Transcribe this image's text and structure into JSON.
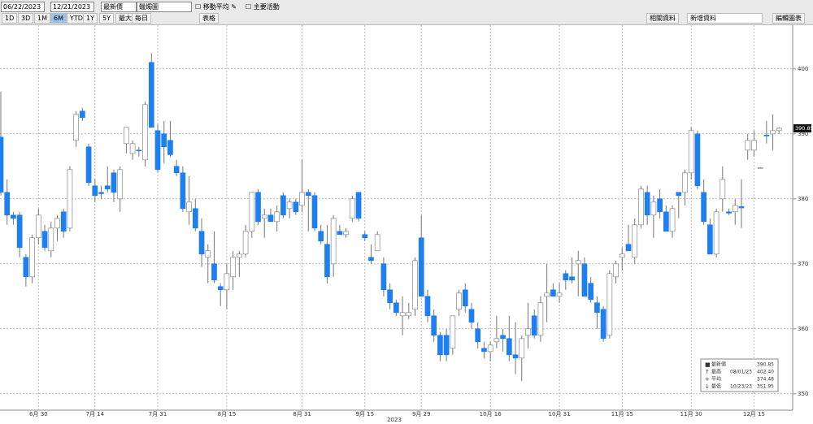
{
  "toolbar": {
    "start_date": "06/22/2023",
    "end_date": "12/21/2023",
    "field": "最新價",
    "style": "蠟燭圖",
    "checkboxes": [
      "移動平均",
      "主要活動"
    ],
    "ranges": [
      "1D",
      "3D",
      "1M",
      "6M",
      "YTD",
      "1Y",
      "5Y",
      "最大"
    ],
    "period": "每日",
    "table": "表格",
    "tabs": [
      "相關資料",
      "新增資料",
      "編輯圖表"
    ]
  },
  "chart_data": {
    "type": "candlestick",
    "year_label": "2023",
    "up_color": "#ffffff",
    "down_color": "#1e7ff0",
    "ylim": [
      348.1,
      406.1
    ],
    "yticks": [
      350,
      360,
      370,
      380,
      390,
      400
    ],
    "grid": true,
    "categories": [
      null,
      null,
      null,
      null,
      null,
      null,
      "6月 30",
      null,
      null,
      null,
      null,
      null,
      null,
      null,
      null,
      "7月 14",
      null,
      null,
      null,
      null,
      null,
      null,
      null,
      null,
      null,
      "7月 31",
      null,
      null,
      null,
      null,
      null,
      null,
      null,
      null,
      null,
      null,
      "8月 15",
      null,
      null,
      null,
      null,
      null,
      null,
      null,
      null,
      null,
      null,
      null,
      "8月 31",
      null,
      null,
      null,
      null,
      null,
      null,
      null,
      null,
      null,
      "9月 15",
      null,
      null,
      null,
      null,
      null,
      null,
      null,
      null,
      "9月 29",
      null,
      null,
      null,
      null,
      null,
      null,
      null,
      null,
      null,
      null,
      "10月 16",
      null,
      null,
      null,
      null,
      null,
      null,
      null,
      null,
      null,
      null,
      "10月 31",
      null,
      null,
      null,
      null,
      null,
      null,
      null,
      null,
      null,
      "11月 15",
      null,
      null,
      null,
      null,
      null,
      null,
      null,
      null,
      null,
      null,
      "11月 30",
      null,
      null,
      null,
      null,
      null,
      null,
      null,
      null,
      null,
      "12月 15",
      null,
      null,
      null,
      null
    ],
    "candles": [
      [
        389.5,
        396.5,
        380.5,
        381
      ],
      [
        381,
        383,
        376,
        377.5
      ],
      [
        377.5,
        378,
        376,
        377
      ],
      [
        377.5,
        378,
        371,
        372.5
      ],
      [
        371,
        371.5,
        366.5,
        368
      ],
      [
        368,
        374.5,
        367,
        374
      ],
      [
        374,
        378.5,
        373,
        377.5
      ],
      [
        375,
        376,
        372,
        372.5
      ],
      [
        372,
        376.5,
        371,
        375.5
      ],
      [
        375.5,
        377.5,
        373.5,
        377
      ],
      [
        378,
        378.5,
        374,
        375
      ],
      [
        375.5,
        385,
        375,
        384.5
      ],
      [
        389,
        393.5,
        388,
        393
      ],
      [
        393.5,
        394,
        392,
        392.5
      ],
      [
        388,
        388.5,
        382,
        382.5
      ],
      [
        382,
        383,
        379.5,
        380.5
      ],
      [
        381,
        382,
        380,
        380.8
      ],
      [
        382,
        385,
        381,
        381.5
      ],
      [
        384,
        384.5,
        379.5,
        381
      ],
      [
        380,
        385,
        378,
        384.5
      ],
      [
        388.5,
        391,
        387,
        391
      ],
      [
        387,
        389,
        386,
        388.5
      ],
      [
        387.5,
        388,
        386.5,
        387.4
      ],
      [
        386,
        395,
        385,
        394.5
      ],
      [
        401,
        402.4,
        391,
        391
      ],
      [
        390.5,
        391.5,
        384,
        384.5
      ],
      [
        390,
        392,
        385.5,
        388
      ],
      [
        389,
        392,
        386.5,
        386.8
      ],
      [
        385,
        386,
        383.5,
        384
      ],
      [
        384,
        385,
        378,
        378.5
      ],
      [
        378,
        383.5,
        376,
        379.5
      ],
      [
        378.5,
        380,
        375,
        375.5
      ],
      [
        375,
        377,
        369.5,
        371.5
      ],
      [
        371,
        373,
        367,
        372
      ],
      [
        370,
        375,
        367,
        367.5
      ],
      [
        366.5,
        367,
        363.5,
        366
      ],
      [
        366,
        370,
        363,
        368.5
      ],
      [
        368,
        372,
        366,
        371
      ],
      [
        371,
        372,
        368,
        371.5
      ],
      [
        371.5,
        376,
        371,
        375
      ],
      [
        375,
        381,
        374,
        381
      ],
      [
        381,
        381.5,
        376,
        376.5
      ],
      [
        377,
        378.5,
        374,
        377.5
      ],
      [
        377.5,
        378.5,
        376.5,
        376.5
      ],
      [
        376.5,
        379,
        375,
        378
      ],
      [
        380.5,
        381,
        377,
        377.5
      ],
      [
        378.5,
        380,
        377,
        379.5
      ],
      [
        379.5,
        380,
        377.5,
        378
      ],
      [
        379,
        386,
        378,
        381
      ],
      [
        381,
        381.5,
        375,
        380.5
      ],
      [
        380.5,
        381,
        375,
        375.5
      ],
      [
        375,
        376,
        373,
        373.5
      ],
      [
        373,
        376,
        367,
        368
      ],
      [
        370,
        377.5,
        368,
        377
      ],
      [
        375,
        376,
        374.5,
        374.5
      ],
      [
        374.5,
        375.5,
        374,
        375
      ],
      [
        377,
        380.5,
        376.5,
        380
      ],
      [
        381,
        381,
        376.5,
        377
      ],
      [
        374.5,
        375,
        373.5,
        374
      ],
      [
        371,
        373,
        370,
        370.5
      ],
      [
        372,
        375,
        372,
        374.5
      ],
      [
        370,
        371,
        365,
        366
      ],
      [
        366,
        367,
        363,
        364
      ],
      [
        364,
        364.5,
        362,
        362.5
      ],
      [
        362,
        365,
        359,
        362.5
      ],
      [
        362,
        364,
        361.5,
        362.5
      ],
      [
        363,
        371,
        362,
        370.5
      ],
      [
        374,
        377.5,
        365,
        365
      ],
      [
        365,
        366,
        361,
        362
      ],
      [
        362,
        363,
        358,
        359
      ],
      [
        359,
        359.5,
        355,
        356
      ],
      [
        359,
        360,
        355,
        356
      ],
      [
        357,
        362,
        356,
        362
      ],
      [
        363,
        366,
        362,
        365.5
      ],
      [
        366,
        367,
        362.5,
        363.5
      ],
      [
        363,
        364,
        360,
        361
      ],
      [
        360,
        361,
        357,
        358
      ],
      [
        357,
        358,
        355.5,
        356.5
      ],
      [
        356.5,
        358,
        355,
        357.5
      ],
      [
        358,
        362,
        357,
        358.5
      ],
      [
        359,
        360,
        356.5,
        358.5
      ],
      [
        358.5,
        362,
        355,
        356
      ],
      [
        356,
        361,
        353,
        355.5
      ],
      [
        355.5,
        359,
        351.95,
        358.5
      ],
      [
        359,
        364,
        357,
        360
      ],
      [
        362,
        363,
        358.5,
        359
      ],
      [
        359,
        365,
        358,
        364
      ],
      [
        365,
        370,
        361,
        365.5
      ],
      [
        366,
        367,
        365,
        365
      ],
      [
        365,
        367,
        364,
        365.5
      ],
      [
        368.5,
        369,
        366,
        367.5
      ],
      [
        368,
        371,
        367,
        367.5
      ],
      [
        370,
        372,
        365,
        370.5
      ],
      [
        370,
        371,
        365,
        365
      ],
      [
        367,
        368,
        364,
        364.5
      ],
      [
        364,
        365,
        360,
        362.5
      ],
      [
        363,
        363.5,
        358,
        358.5
      ],
      [
        359,
        369,
        358.5,
        368.5
      ],
      [
        368,
        370.5,
        367,
        370
      ],
      [
        371,
        372.5,
        369,
        371.5
      ],
      [
        373,
        376,
        372,
        372
      ],
      [
        371,
        377,
        370,
        376
      ],
      [
        376,
        382,
        375.5,
        381.5
      ],
      [
        381,
        382,
        376,
        377.5
      ],
      [
        377.5,
        380.5,
        374,
        379.5
      ],
      [
        380,
        381.5,
        377,
        378
      ],
      [
        378,
        379,
        375,
        375
      ],
      [
        375,
        379,
        374,
        378.5
      ],
      [
        381,
        381,
        377,
        380.5
      ],
      [
        381,
        384.5,
        379,
        384
      ],
      [
        384,
        391,
        383,
        390.5
      ],
      [
        390,
        390.5,
        381.5,
        382
      ],
      [
        381,
        383,
        376,
        376.5
      ],
      [
        376,
        377,
        371.5,
        371.5
      ],
      [
        371.5,
        378.5,
        371,
        378
      ],
      [
        380,
        385,
        378,
        383
      ],
      [
        378,
        378.5,
        377.5,
        377.8
      ],
      [
        378,
        380,
        376,
        379
      ],
      [
        378.8,
        383,
        375.5,
        378.6
      ],
      [
        387.5,
        390,
        386,
        389
      ],
      [
        387.5,
        390.5,
        386.5,
        389
      ],
      [
        384.8,
        384.9,
        384.7,
        384.8
      ],
      [
        389.8,
        392,
        388.5,
        389.7
      ],
      [
        390,
        393,
        387.5,
        390.5
      ],
      [
        390.5,
        391,
        390,
        390.85
      ]
    ],
    "legend": [
      {
        "label": "最新價",
        "value": "390.85"
      },
      {
        "label": "最高",
        "date": "08/01/23",
        "value": "402.40"
      },
      {
        "label": "平均",
        "value": "374.48"
      },
      {
        "label": "最低",
        "date": "10/23/23",
        "value": "351.95"
      }
    ]
  }
}
